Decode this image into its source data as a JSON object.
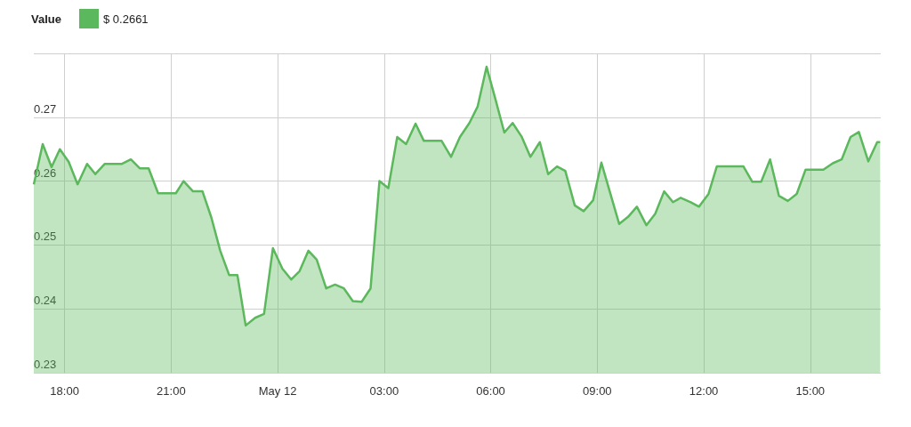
{
  "chart_data": {
    "type": "area",
    "legend_title": "Value",
    "legend": "top left",
    "grid": true,
    "marker": "none",
    "xlim": [
      "--05-11T17:08",
      "--05-12T16:59"
    ],
    "xticks": [
      {
        "value": "--05-11T18:00",
        "label": "18:00"
      },
      {
        "value": "--05-11T21:00",
        "label": "21:00"
      },
      {
        "value": "--05-12T00:00",
        "label": "May 12"
      },
      {
        "value": "--05-12T03:00",
        "label": "03:00"
      },
      {
        "value": "--05-12T06:00",
        "label": "06:00"
      },
      {
        "value": "--05-12T09:00",
        "label": "09:00"
      },
      {
        "value": "--05-12T12:00",
        "label": "12:00"
      },
      {
        "value": "--05-12T15:00",
        "label": "15:00"
      }
    ],
    "ylim": [
      0.23,
      0.28
    ],
    "yticks": [
      0.23,
      0.24,
      0.25,
      0.26,
      0.27,
      {
        "value": 0.28,
        "label": null
      }
    ],
    "series": [
      {
        "name": "$ 0.2661",
        "color": "#5cb85c",
        "x": [
          "--05-11T17:08",
          "--05-11T17:23",
          "--05-11T17:38",
          "--05-11T17:52",
          "--05-11T18:07",
          "--05-11T18:22",
          "--05-11T18:38",
          "--05-11T18:52",
          "--05-11T19:08",
          "--05-11T19:37",
          "--05-11T19:52",
          "--05-11T20:07",
          "--05-11T20:22",
          "--05-11T20:38",
          "--05-11T21:08",
          "--05-11T21:21",
          "--05-11T21:37",
          "--05-11T21:53",
          "--05-11T22:08",
          "--05-11T22:23",
          "--05-11T22:38",
          "--05-11T22:52",
          "--05-11T23:06",
          "--05-11T23:22",
          "--05-11T23:37",
          "--05-11T23:52",
          "--05-12T00:08",
          "--05-12T00:23",
          "--05-12T00:37",
          "--05-12T00:52",
          "--05-12T01:06",
          "--05-12T01:22",
          "--05-12T01:37",
          "--05-12T01:52",
          "--05-12T02:07",
          "--05-12T02:22",
          "--05-12T02:37",
          "--05-12T02:52",
          "--05-12T03:07",
          "--05-12T03:22",
          "--05-12T03:37",
          "--05-12T03:53",
          "--05-12T04:07",
          "--05-12T04:37",
          "--05-12T04:53",
          "--05-12T05:08",
          "--05-12T05:24",
          "--05-12T05:38",
          "--05-12T05:53",
          "--05-12T06:08",
          "--05-12T06:23",
          "--05-12T06:37",
          "--05-12T06:52",
          "--05-12T07:07",
          "--05-12T07:23",
          "--05-12T07:37",
          "--05-12T07:52",
          "--05-12T08:06",
          "--05-12T08:22",
          "--05-12T08:37",
          "--05-12T08:53",
          "--05-12T09:07",
          "--05-12T09:37",
          "--05-12T09:52",
          "--05-12T10:07",
          "--05-12T10:23",
          "--05-12T10:38",
          "--05-12T10:53",
          "--05-12T11:08",
          "--05-12T11:21",
          "--05-12T11:38",
          "--05-12T11:52",
          "--05-12T12:08",
          "--05-12T12:22",
          "--05-12T13:07",
          "--05-12T13:22",
          "--05-12T13:37",
          "--05-12T13:52",
          "--05-12T14:07",
          "--05-12T14:22",
          "--05-12T14:37",
          "--05-12T14:52",
          "--05-12T15:22",
          "--05-12T15:38",
          "--05-12T15:53",
          "--05-12T16:08",
          "--05-12T16:22",
          "--05-12T16:38",
          "--05-12T16:53",
          "--05-12T16:58"
        ],
        "values": [
          0.2595,
          0.2658,
          0.2622,
          0.265,
          0.263,
          0.2595,
          0.2627,
          0.2611,
          0.2627,
          0.2627,
          0.2634,
          0.262,
          0.262,
          0.2581,
          0.2581,
          0.26,
          0.2584,
          0.2584,
          0.2543,
          0.2491,
          0.2453,
          0.2453,
          0.2374,
          0.2386,
          0.2392,
          0.2495,
          0.2463,
          0.2446,
          0.2459,
          0.2491,
          0.2477,
          0.2432,
          0.2438,
          0.2432,
          0.2412,
          0.2411,
          0.2432,
          0.26,
          0.2589,
          0.2669,
          0.2658,
          0.269,
          0.2663,
          0.2663,
          0.2638,
          0.2669,
          0.2691,
          0.2717,
          0.2779,
          0.2728,
          0.2676,
          0.2691,
          0.267,
          0.2638,
          0.2661,
          0.2611,
          0.2623,
          0.2616,
          0.2562,
          0.2553,
          0.257,
          0.2629,
          0.2533,
          0.2544,
          0.256,
          0.2531,
          0.2549,
          0.2584,
          0.2567,
          0.2574,
          0.2567,
          0.256,
          0.258,
          0.2623,
          0.2623,
          0.2599,
          0.2599,
          0.2634,
          0.2577,
          0.2569,
          0.258,
          0.2618,
          0.2618,
          0.2628,
          0.2634,
          0.2669,
          0.2677,
          0.2631,
          0.2661,
          0.2661
        ]
      }
    ]
  }
}
